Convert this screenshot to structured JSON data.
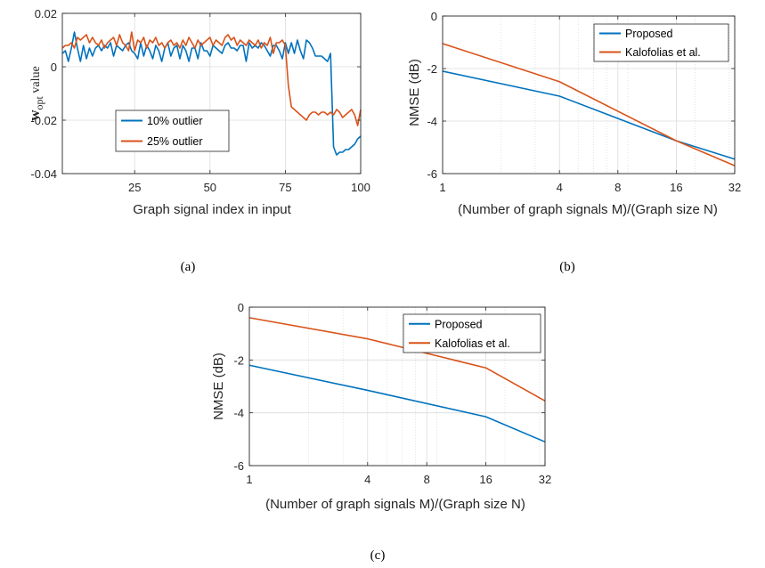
{
  "colors": {
    "blue": "#0072BD",
    "orange": "#D95319",
    "grid": "#dcdcdc",
    "axis": "#262626"
  },
  "chart_data": [
    {
      "id": "a",
      "type": "line",
      "caption": "(a)",
      "xlabel": "Graph signal index in input",
      "ylabel_main": "w",
      "ylabel_sub": "opt",
      "ylabel_rest": " value",
      "xlim": [
        1,
        100
      ],
      "ylim": [
        -0.04,
        0.02
      ],
      "xticks": [
        25,
        50,
        75,
        100
      ],
      "xtick_labels": [
        "25",
        "50",
        "75",
        "100"
      ],
      "yticks": [
        -0.04,
        -0.02,
        0,
        0.02
      ],
      "ytick_labels": [
        "-0.04",
        "-0.02",
        "0",
        "0.02"
      ],
      "grid": true,
      "legend_position": "lower-left-center",
      "series": [
        {
          "name": "10% outlier",
          "color": "#0072BD",
          "x": [
            1,
            2,
            3,
            4,
            5,
            6,
            7,
            8,
            9,
            10,
            11,
            12,
            13,
            14,
            15,
            16,
            17,
            18,
            19,
            20,
            21,
            22,
            23,
            24,
            25,
            26,
            27,
            28,
            29,
            30,
            31,
            32,
            33,
            34,
            35,
            36,
            37,
            38,
            39,
            40,
            41,
            42,
            43,
            44,
            45,
            46,
            47,
            48,
            49,
            50,
            51,
            52,
            53,
            54,
            55,
            56,
            57,
            58,
            59,
            60,
            61,
            62,
            63,
            64,
            65,
            66,
            67,
            68,
            69,
            70,
            71,
            72,
            73,
            74,
            75,
            76,
            77,
            78,
            79,
            80,
            81,
            82,
            83,
            84,
            85,
            86,
            87,
            88,
            89,
            90,
            91,
            92,
            93,
            94,
            95,
            96,
            97,
            98,
            99,
            100
          ],
          "y": [
            0.005,
            0.006,
            0.002,
            0.007,
            0.013,
            0.007,
            0.002,
            0.008,
            0.003,
            0.007,
            0.004,
            0.007,
            0.008,
            0.006,
            0.008,
            0.007,
            0.009,
            0.004,
            0.008,
            0.007,
            0.006,
            0.008,
            0.009,
            0.006,
            0.005,
            0.003,
            0.009,
            0.004,
            0.008,
            0.006,
            0.003,
            0.008,
            0.006,
            0.002,
            0.007,
            0.009,
            0.004,
            0.007,
            0.008,
            0.003,
            0.008,
            0.006,
            0.002,
            0.007,
            0.007,
            0.003,
            0.009,
            0.006,
            0.006,
            0.004,
            0.008,
            0.007,
            0.006,
            0.005,
            0.008,
            0.009,
            0.007,
            0.007,
            0.006,
            0.008,
            0.008,
            0.002,
            0.009,
            0.007,
            0.008,
            0.007,
            0.009,
            0.008,
            0.006,
            0.004,
            0.008,
            0.008,
            0.006,
            0.003,
            0.009,
            0.005,
            0.009,
            0.005,
            0.01,
            0.006,
            0.003,
            0.01,
            0.009,
            0.007,
            0.004,
            0.004,
            0.004,
            0.003,
            0.002,
            0.005,
            -0.03,
            -0.033,
            -0.032,
            -0.032,
            -0.031,
            -0.031,
            -0.03,
            -0.029,
            -0.027,
            -0.026
          ]
        },
        {
          "name": "25% outlier",
          "color": "#D95319",
          "x": [
            1,
            2,
            3,
            4,
            5,
            6,
            7,
            8,
            9,
            10,
            11,
            12,
            13,
            14,
            15,
            16,
            17,
            18,
            19,
            20,
            21,
            22,
            23,
            24,
            25,
            26,
            27,
            28,
            29,
            30,
            31,
            32,
            33,
            34,
            35,
            36,
            37,
            38,
            39,
            40,
            41,
            42,
            43,
            44,
            45,
            46,
            47,
            48,
            49,
            50,
            51,
            52,
            53,
            54,
            55,
            56,
            57,
            58,
            59,
            60,
            61,
            62,
            63,
            64,
            65,
            66,
            67,
            68,
            69,
            70,
            71,
            72,
            73,
            74,
            75,
            76,
            77,
            78,
            79,
            80,
            81,
            82,
            83,
            84,
            85,
            86,
            87,
            88,
            89,
            90,
            91,
            92,
            93,
            94,
            95,
            96,
            97,
            98,
            99,
            100
          ],
          "y": [
            0.007,
            0.008,
            0.008,
            0.009,
            0.007,
            0.011,
            0.01,
            0.011,
            0.012,
            0.009,
            0.011,
            0.009,
            0.008,
            0.01,
            0.007,
            0.009,
            0.01,
            0.011,
            0.008,
            0.012,
            0.009,
            0.008,
            0.006,
            0.013,
            0.006,
            0.01,
            0.009,
            0.011,
            0.007,
            0.01,
            0.009,
            0.011,
            0.008,
            0.009,
            0.007,
            0.009,
            0.01,
            0.008,
            0.009,
            0.007,
            0.01,
            0.008,
            0.011,
            0.009,
            0.007,
            0.01,
            0.008,
            0.009,
            0.01,
            0.011,
            0.008,
            0.01,
            0.009,
            0.008,
            0.011,
            0.012,
            0.01,
            0.011,
            0.008,
            0.01,
            0.009,
            0.008,
            0.01,
            0.009,
            0.008,
            0.01,
            0.007,
            0.009,
            0.008,
            0.011,
            0.005,
            0.009,
            0.009,
            0.01,
            0.008,
            -0.007,
            -0.015,
            -0.016,
            -0.017,
            -0.018,
            -0.019,
            -0.02,
            -0.018,
            -0.017,
            -0.017,
            -0.018,
            -0.017,
            -0.017,
            -0.018,
            -0.017,
            -0.018,
            -0.016,
            -0.017,
            -0.019,
            -0.018,
            -0.017,
            -0.016,
            -0.018,
            -0.022,
            -0.016
          ]
        }
      ]
    },
    {
      "id": "b",
      "type": "line",
      "caption": "(b)",
      "xscale": "log",
      "xlabel": "(Number of graph signals M)/(Graph size N)",
      "ylabel": "NMSE (dB)",
      "xlim": [
        1,
        32
      ],
      "ylim": [
        -6,
        0
      ],
      "xticks": [
        1,
        4,
        8,
        16,
        32
      ],
      "xtick_labels": [
        "1",
        "4",
        "8",
        "16",
        "32"
      ],
      "yticks": [
        -6,
        -4,
        -2,
        0
      ],
      "ytick_labels": [
        "-6",
        "-4",
        "-2",
        "0"
      ],
      "grid": true,
      "legend_position": "top-right",
      "series": [
        {
          "name": "Proposed",
          "color": "#0072BD",
          "x": [
            1,
            4,
            16,
            32
          ],
          "y": [
            -2.1,
            -3.05,
            -4.75,
            -5.45
          ]
        },
        {
          "name": "Kalofolias et al.",
          "color": "#D95319",
          "x": [
            1,
            4,
            16,
            32
          ],
          "y": [
            -1.05,
            -2.5,
            -4.75,
            -5.7
          ]
        }
      ]
    },
    {
      "id": "c",
      "type": "line",
      "caption": "(c)",
      "xscale": "log",
      "xlabel": "(Number of graph signals M)/(Graph size N)",
      "ylabel": "NMSE (dB)",
      "xlim": [
        1,
        32
      ],
      "ylim": [
        -6,
        0
      ],
      "xticks": [
        1,
        4,
        8,
        16,
        32
      ],
      "xtick_labels": [
        "1",
        "4",
        "8",
        "16",
        "32"
      ],
      "yticks": [
        -6,
        -4,
        -2,
        0
      ],
      "ytick_labels": [
        "-6",
        "-4",
        "-2",
        "0"
      ],
      "grid": true,
      "legend_position": "top-right",
      "series": [
        {
          "name": "Proposed",
          "color": "#0072BD",
          "x": [
            1,
            4,
            16,
            32
          ],
          "y": [
            -2.2,
            -3.15,
            -4.15,
            -5.1
          ]
        },
        {
          "name": "Kalofolias et al.",
          "color": "#D95319",
          "x": [
            1,
            4,
            16,
            32
          ],
          "y": [
            -0.4,
            -1.2,
            -2.3,
            -3.55
          ]
        }
      ]
    }
  ]
}
